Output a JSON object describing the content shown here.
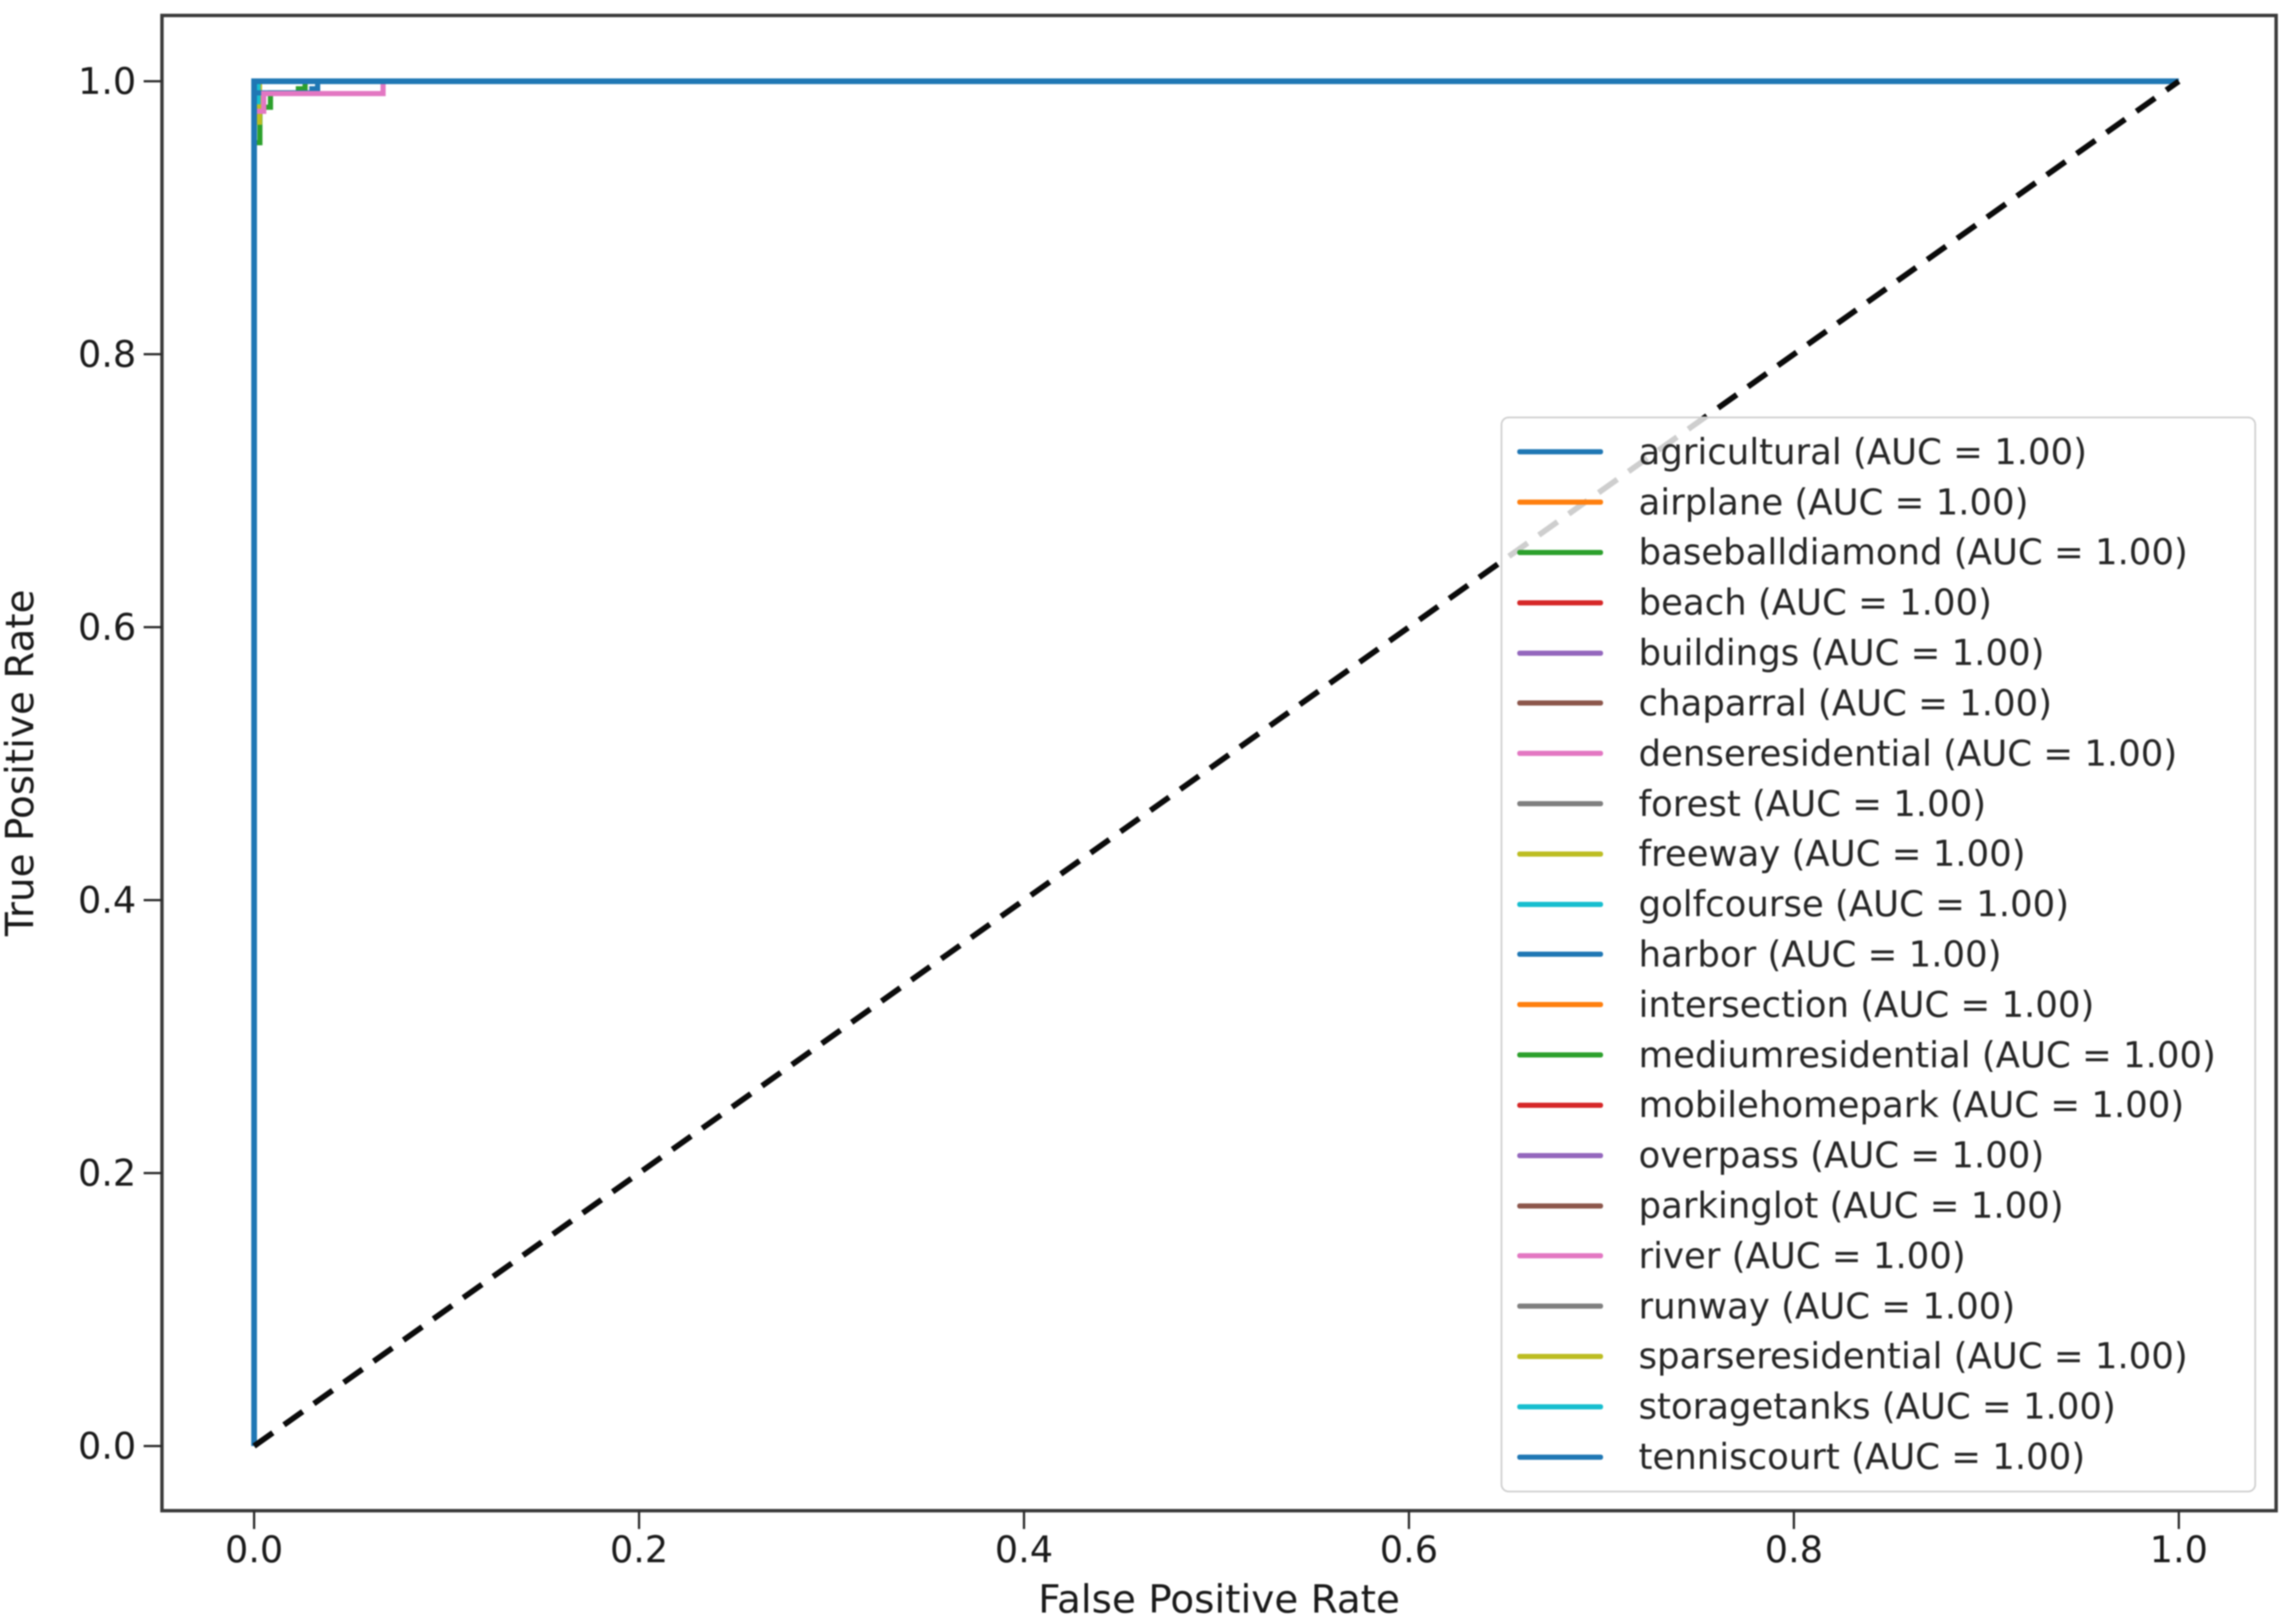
{
  "figure": {
    "xlabel": "False Positive Rate",
    "ylabel": "True Positive Rate"
  },
  "chart_data": {
    "type": "line",
    "subtype": "roc-curves-multiclass",
    "title": "",
    "xlabel": "False Positive Rate",
    "ylabel": "True Positive Rate",
    "xlim": [
      -0.05,
      1.05
    ],
    "ylim": [
      -0.05,
      1.05
    ],
    "x_ticks": [
      0.0,
      0.2,
      0.4,
      0.6,
      0.8,
      1.0
    ],
    "y_ticks": [
      0.0,
      0.2,
      0.4,
      0.6,
      0.8,
      1.0
    ],
    "x_tick_labels": [
      "0.0",
      "0.2",
      "0.4",
      "0.6",
      "0.8",
      "1.0"
    ],
    "y_tick_labels": [
      "0.0",
      "0.2",
      "0.4",
      "0.6",
      "0.8",
      "1.0"
    ],
    "grid": false,
    "legend_position": "lower right",
    "reference_line": {
      "name": "chance-diagonal",
      "from": [
        0,
        0
      ],
      "to": [
        1,
        1
      ],
      "style": "dashed",
      "color": "#0a0a0a"
    },
    "series": [
      {
        "name": "agricultural",
        "label": "agricultural (AUC = 1.00)",
        "auc": "1.00",
        "color": "#1f77b4",
        "points": [
          [
            0,
            0
          ],
          [
            0,
            1
          ],
          [
            1,
            1
          ]
        ]
      },
      {
        "name": "airplane",
        "label": "airplane (AUC = 1.00)",
        "auc": "1.00",
        "color": "#ff7f0e",
        "points": [
          [
            0,
            0
          ],
          [
            0,
            1
          ],
          [
            1,
            1
          ]
        ]
      },
      {
        "name": "baseballdiamond",
        "label": "baseballdiamond (AUC = 1.00)",
        "auc": "1.00",
        "color": "#2ca02c",
        "points": [
          [
            0,
            0
          ],
          [
            0,
            0.955
          ],
          [
            0.003,
            0.955
          ],
          [
            0.003,
            0.981
          ],
          [
            0.0085,
            0.981
          ],
          [
            0.0085,
            0.9915
          ],
          [
            0.023,
            0.9915
          ],
          [
            0.023,
            0.9945
          ],
          [
            0.0265,
            0.9945
          ],
          [
            0.0265,
            1
          ],
          [
            1,
            1
          ]
        ]
      },
      {
        "name": "beach",
        "label": "beach (AUC = 1.00)",
        "auc": "1.00",
        "color": "#d62728",
        "points": [
          [
            0,
            0
          ],
          [
            0,
            1
          ],
          [
            1,
            1
          ]
        ]
      },
      {
        "name": "buildings",
        "label": "buildings (AUC = 1.00)",
        "auc": "1.00",
        "color": "#9467bd",
        "points": [
          [
            0,
            0
          ],
          [
            0,
            1
          ],
          [
            1,
            1
          ]
        ]
      },
      {
        "name": "chaparral",
        "label": "chaparral (AUC = 1.00)",
        "auc": "1.00",
        "color": "#8c564b",
        "points": [
          [
            0,
            0
          ],
          [
            0,
            1
          ],
          [
            1,
            1
          ]
        ]
      },
      {
        "name": "denseresidential",
        "label": "denseresidential (AUC = 1.00)",
        "auc": "1.00",
        "color": "#e377c2",
        "points": [
          [
            0,
            0
          ],
          [
            0,
            1
          ],
          [
            1,
            1
          ]
        ]
      },
      {
        "name": "forest",
        "label": "forest (AUC = 1.00)",
        "auc": "1.00",
        "color": "#7f7f7f",
        "points": [
          [
            0,
            0
          ],
          [
            0,
            1
          ],
          [
            1,
            1
          ]
        ]
      },
      {
        "name": "freeway",
        "label": "freeway (AUC = 1.00)",
        "auc": "1.00",
        "color": "#bcbd22",
        "points": [
          [
            0,
            0
          ],
          [
            0,
            0.97
          ],
          [
            0.0028,
            0.97
          ],
          [
            0.0028,
            1
          ],
          [
            1,
            1
          ]
        ]
      },
      {
        "name": "golfcourse",
        "label": "golfcourse (AUC = 1.00)",
        "auc": "1.00",
        "color": "#17becf",
        "points": [
          [
            0,
            0
          ],
          [
            0,
            0.985
          ],
          [
            0.002,
            0.985
          ],
          [
            0.002,
            1
          ],
          [
            1,
            1
          ]
        ]
      },
      {
        "name": "harbor",
        "label": "harbor (AUC = 1.00)",
        "auc": "1.00",
        "color": "#1f77b4",
        "points": [
          [
            0,
            0
          ],
          [
            0,
            0.9915
          ],
          [
            0.03,
            0.9915
          ],
          [
            0.03,
            0.9945
          ],
          [
            0.033,
            0.9945
          ],
          [
            0.033,
            1
          ],
          [
            1,
            1
          ]
        ]
      },
      {
        "name": "intersection",
        "label": "intersection (AUC = 1.00)",
        "auc": "1.00",
        "color": "#ff7f0e",
        "points": [
          [
            0,
            0
          ],
          [
            0,
            1
          ],
          [
            1,
            1
          ]
        ]
      },
      {
        "name": "mediumresidential",
        "label": "mediumresidential (AUC = 1.00)",
        "auc": "1.00",
        "color": "#2ca02c",
        "points": [
          [
            0,
            0
          ],
          [
            0,
            1
          ],
          [
            1,
            1
          ]
        ]
      },
      {
        "name": "mobilehomepark",
        "label": "mobilehomepark (AUC = 1.00)",
        "auc": "1.00",
        "color": "#d62728",
        "points": [
          [
            0,
            0
          ],
          [
            0,
            1
          ],
          [
            1,
            1
          ]
        ]
      },
      {
        "name": "overpass",
        "label": "overpass (AUC = 1.00)",
        "auc": "1.00",
        "color": "#9467bd",
        "points": [
          [
            0,
            0
          ],
          [
            0,
            1
          ],
          [
            1,
            1
          ]
        ]
      },
      {
        "name": "parkinglot",
        "label": "parkinglot (AUC = 1.00)",
        "auc": "1.00",
        "color": "#8c564b",
        "points": [
          [
            0,
            0
          ],
          [
            0,
            1
          ],
          [
            1,
            1
          ]
        ]
      },
      {
        "name": "river",
        "label": "river (AUC = 1.00)",
        "auc": "1.00",
        "color": "#e377c2",
        "points": [
          [
            0,
            0
          ],
          [
            0,
            0.978
          ],
          [
            0.005,
            0.978
          ],
          [
            0.005,
            0.991
          ],
          [
            0.067,
            0.991
          ],
          [
            0.067,
            1
          ],
          [
            1,
            1
          ]
        ]
      },
      {
        "name": "runway",
        "label": "runway (AUC = 1.00)",
        "auc": "1.00",
        "color": "#7f7f7f",
        "points": [
          [
            0,
            0
          ],
          [
            0,
            1
          ],
          [
            1,
            1
          ]
        ]
      },
      {
        "name": "sparseresidential",
        "label": "sparseresidential (AUC = 1.00)",
        "auc": "1.00",
        "color": "#bcbd22",
        "points": [
          [
            0,
            0
          ],
          [
            0,
            1
          ],
          [
            1,
            1
          ]
        ]
      },
      {
        "name": "storagetanks",
        "label": "storagetanks (AUC = 1.00)",
        "auc": "1.00",
        "color": "#17becf",
        "points": [
          [
            0,
            0
          ],
          [
            0,
            1
          ],
          [
            1,
            1
          ]
        ]
      },
      {
        "name": "tenniscourt",
        "label": "tenniscourt (AUC = 1.00)",
        "auc": "1.00",
        "color": "#1f77b4",
        "points": [
          [
            0,
            0
          ],
          [
            0,
            1
          ],
          [
            1,
            1
          ]
        ]
      }
    ]
  }
}
